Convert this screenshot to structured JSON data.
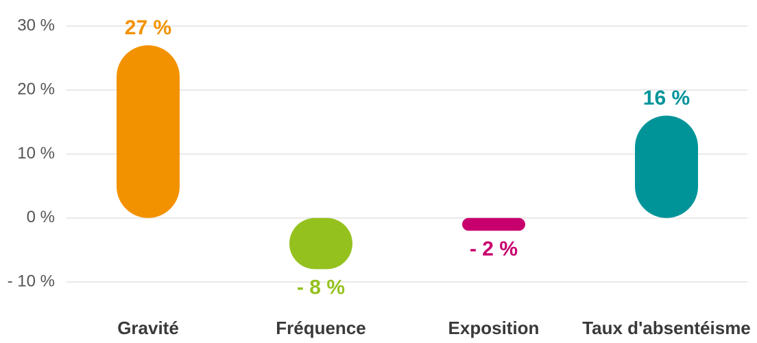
{
  "chart_data": {
    "type": "bar",
    "categories": [
      "Gravité",
      "Fréquence",
      "Exposition",
      "Taux d'absentéisme"
    ],
    "values": [
      27,
      -8,
      -2,
      16
    ],
    "value_labels": [
      "27 %",
      "- 8 %",
      "- 2 %",
      "16 %"
    ],
    "colors": [
      "#f39200",
      "#95c11f",
      "#c8006e",
      "#009499"
    ],
    "ylim": [
      -10,
      30
    ],
    "yticks": [
      {
        "value": -10,
        "label": "- 10 %"
      },
      {
        "value": 0,
        "label": "0 %"
      },
      {
        "value": 10,
        "label": "10 %"
      },
      {
        "value": 20,
        "label": "20 %"
      },
      {
        "value": 30,
        "label": "30 %"
      }
    ],
    "grid": true
  }
}
